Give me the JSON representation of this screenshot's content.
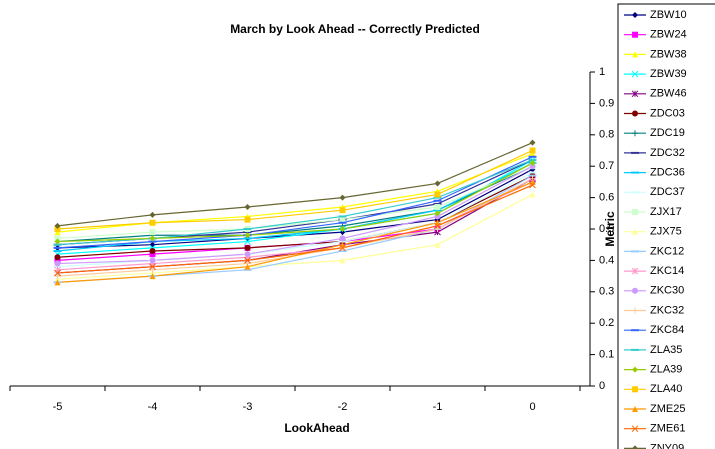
{
  "chart_data": {
    "type": "line",
    "title": "March by Look Ahead -- Correctly Predicted",
    "x_label": "LookAhead",
    "y_label": "Metric",
    "categories": [
      "-5",
      "-4",
      "-3",
      "-2",
      "-1",
      "0"
    ],
    "ylim": [
      0,
      1
    ],
    "yticks": [
      0,
      0.1,
      0.2,
      0.3,
      0.4,
      0.5,
      0.6,
      0.7,
      0.8,
      0.9,
      1
    ],
    "y_axis_side": "right",
    "grid": false,
    "legend": "right",
    "series": [
      {
        "name": "ZBW10",
        "color": "#000080",
        "marker": "diamond",
        "values": [
          0.44,
          0.45,
          0.47,
          0.49,
          0.53,
          0.69
        ]
      },
      {
        "name": "ZBW24",
        "color": "#FF00FF",
        "marker": "square",
        "values": [
          0.4,
          0.42,
          0.44,
          0.46,
          0.5,
          0.66
        ]
      },
      {
        "name": "ZBW38",
        "color": "#FFFF00",
        "marker": "triangle",
        "values": [
          0.49,
          0.52,
          0.54,
          0.57,
          0.62,
          0.74
        ]
      },
      {
        "name": "ZBW39",
        "color": "#00FFFF",
        "marker": "x",
        "values": [
          0.42,
          0.44,
          0.46,
          0.5,
          0.55,
          0.72
        ]
      },
      {
        "name": "ZBW46",
        "color": "#800080",
        "marker": "star",
        "values": [
          0.36,
          0.38,
          0.4,
          0.45,
          0.49,
          0.66
        ]
      },
      {
        "name": "ZDC03",
        "color": "#800000",
        "marker": "circle",
        "values": [
          0.41,
          0.43,
          0.44,
          0.46,
          0.52,
          0.67
        ]
      },
      {
        "name": "ZDC19",
        "color": "#008080",
        "marker": "plus",
        "values": [
          0.46,
          0.48,
          0.48,
          0.51,
          0.56,
          0.7
        ]
      },
      {
        "name": "ZDC32",
        "color": "#333399",
        "marker": "dash",
        "values": [
          0.45,
          0.47,
          0.49,
          0.53,
          0.58,
          0.72
        ]
      },
      {
        "name": "ZDC36",
        "color": "#00CCFF",
        "marker": "dash",
        "values": [
          0.43,
          0.46,
          0.47,
          0.5,
          0.56,
          0.71
        ]
      },
      {
        "name": "ZDC37",
        "color": "#CCFFFF",
        "marker": "dash",
        "values": [
          0.38,
          0.4,
          0.42,
          0.46,
          0.52,
          0.68
        ]
      },
      {
        "name": "ZJX17",
        "color": "#CCFFCC",
        "marker": "square",
        "values": [
          0.47,
          0.49,
          0.5,
          0.53,
          0.57,
          0.7
        ]
      },
      {
        "name": "ZJX75",
        "color": "#FFFF99",
        "marker": "triangle",
        "values": [
          0.34,
          0.36,
          0.38,
          0.4,
          0.45,
          0.61
        ]
      },
      {
        "name": "ZKC12",
        "color": "#99CCFF",
        "marker": "dash",
        "values": [
          0.33,
          0.35,
          0.37,
          0.43,
          0.5,
          0.67
        ]
      },
      {
        "name": "ZKC14",
        "color": "#FF99CC",
        "marker": "star",
        "values": [
          0.37,
          0.39,
          0.41,
          0.44,
          0.51,
          0.65
        ]
      },
      {
        "name": "ZKC30",
        "color": "#CC99FF",
        "marker": "circle",
        "values": [
          0.39,
          0.4,
          0.42,
          0.47,
          0.54,
          0.7
        ]
      },
      {
        "name": "ZKC32",
        "color": "#FFCC99",
        "marker": "plus",
        "values": [
          0.35,
          0.37,
          0.39,
          0.44,
          0.5,
          0.66
        ]
      },
      {
        "name": "ZKC84",
        "color": "#3366FF",
        "marker": "dash",
        "values": [
          0.44,
          0.46,
          0.48,
          0.52,
          0.59,
          0.73
        ]
      },
      {
        "name": "ZLA35",
        "color": "#33CCCC",
        "marker": "dash",
        "values": [
          0.45,
          0.47,
          0.5,
          0.54,
          0.6,
          0.72
        ]
      },
      {
        "name": "ZLA39",
        "color": "#99CC00",
        "marker": "diamond",
        "values": [
          0.46,
          0.47,
          0.48,
          0.5,
          0.55,
          0.71
        ]
      },
      {
        "name": "ZLA40",
        "color": "#FFCC00",
        "marker": "square",
        "values": [
          0.5,
          0.52,
          0.53,
          0.56,
          0.61,
          0.75
        ]
      },
      {
        "name": "ZME25",
        "color": "#FF9900",
        "marker": "triangle",
        "values": [
          0.33,
          0.35,
          0.38,
          0.45,
          0.52,
          0.65
        ]
      },
      {
        "name": "ZME61",
        "color": "#FF6600",
        "marker": "x",
        "values": [
          0.36,
          0.38,
          0.4,
          0.44,
          0.51,
          0.64
        ]
      },
      {
        "name": "ZNY09",
        "color": "#666633",
        "marker": "diamond",
        "values": [
          0.51,
          0.545,
          0.57,
          0.6,
          0.645,
          0.775
        ]
      }
    ]
  }
}
